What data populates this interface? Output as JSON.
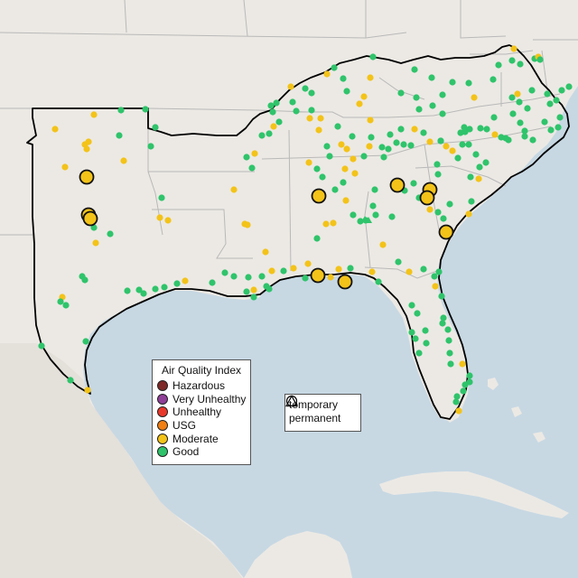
{
  "legend": {
    "title": "Air Quality Index",
    "categories": [
      {
        "label": "Hazardous",
        "color": "#7e2a2a"
      },
      {
        "label": "Very Unhealthy",
        "color": "#8f3f97"
      },
      {
        "label": "Unhealthy",
        "color": "#e8382c"
      },
      {
        "label": "USG",
        "color": "#f07f14"
      },
      {
        "label": "Moderate",
        "color": "#f3c319"
      },
      {
        "label": "Good",
        "color": "#2fc46b"
      }
    ]
  },
  "monitor_type_legend": {
    "temporary": "temporary",
    "permanent": "permanent"
  },
  "colors": {
    "water": "#c7d8e3",
    "land": "#ece9e4",
    "outside_land": "#ece9e4",
    "region_outline": "#000000",
    "state_border": "#b9b9b9",
    "moderate": "#f3c319",
    "good": "#2fc46b"
  },
  "icons": {
    "temporary": "circle-icon",
    "permanent": "triangle-icon"
  }
}
